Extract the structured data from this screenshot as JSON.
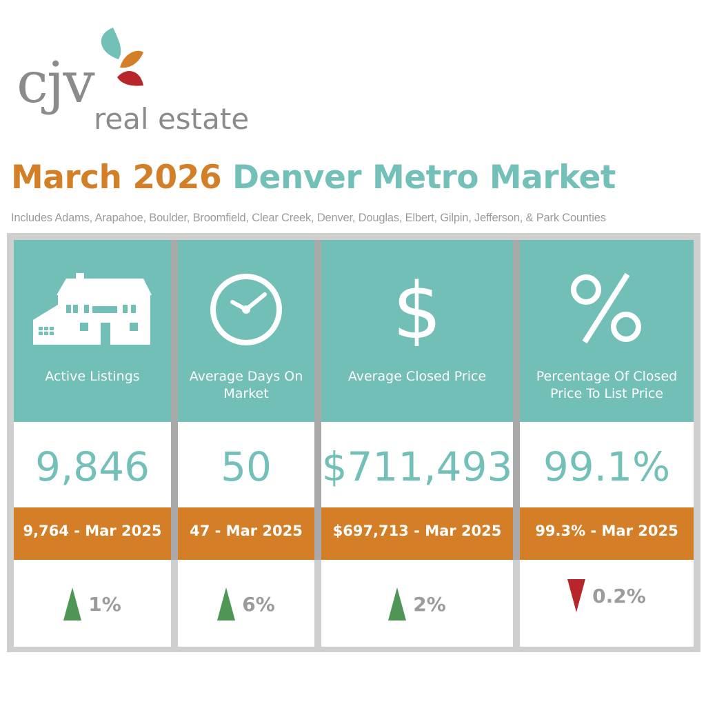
{
  "logo": {
    "text_main": "cjv",
    "text_sub": "real estate",
    "colors": {
      "leaf_teal": "#73c0b8",
      "leaf_orange": "#d37f27",
      "leaf_red": "#b8262b",
      "text": "#8a8b8d"
    }
  },
  "title": {
    "part1": "March 2026",
    "part2": "Denver Metro Market"
  },
  "subtitle": "Includes Adams, Arapahoe, Boulder, Broomfield, Clear Creek, Denver, Douglas, Elbert, Gilpin, Jefferson, & Park Counties",
  "colors": {
    "teal": "#71bfb6",
    "orange": "#d47f27",
    "up": "#4f9656",
    "down": "#b8262b",
    "gray_text": "#9a9b9d"
  },
  "metrics": [
    {
      "icon": "house-icon",
      "label": "Active Listings",
      "value": "9,846",
      "previous": "9,764 - Mar 2025",
      "direction": "up",
      "change": "1%"
    },
    {
      "icon": "clock-icon",
      "label": "Average Days On Market",
      "value": "50",
      "previous": "47 - Mar 2025",
      "direction": "up",
      "change": "6%"
    },
    {
      "icon": "dollar-icon",
      "label": "Average Closed Price",
      "value": "$711,493",
      "previous": "$697,713 - Mar 2025",
      "direction": "up",
      "change": "2%"
    },
    {
      "icon": "percent-icon",
      "label": "Percentage Of Closed Price To List Price",
      "value": "99.1%",
      "previous": "99.3% - Mar 2025",
      "direction": "down",
      "change": "0.2%"
    }
  ]
}
